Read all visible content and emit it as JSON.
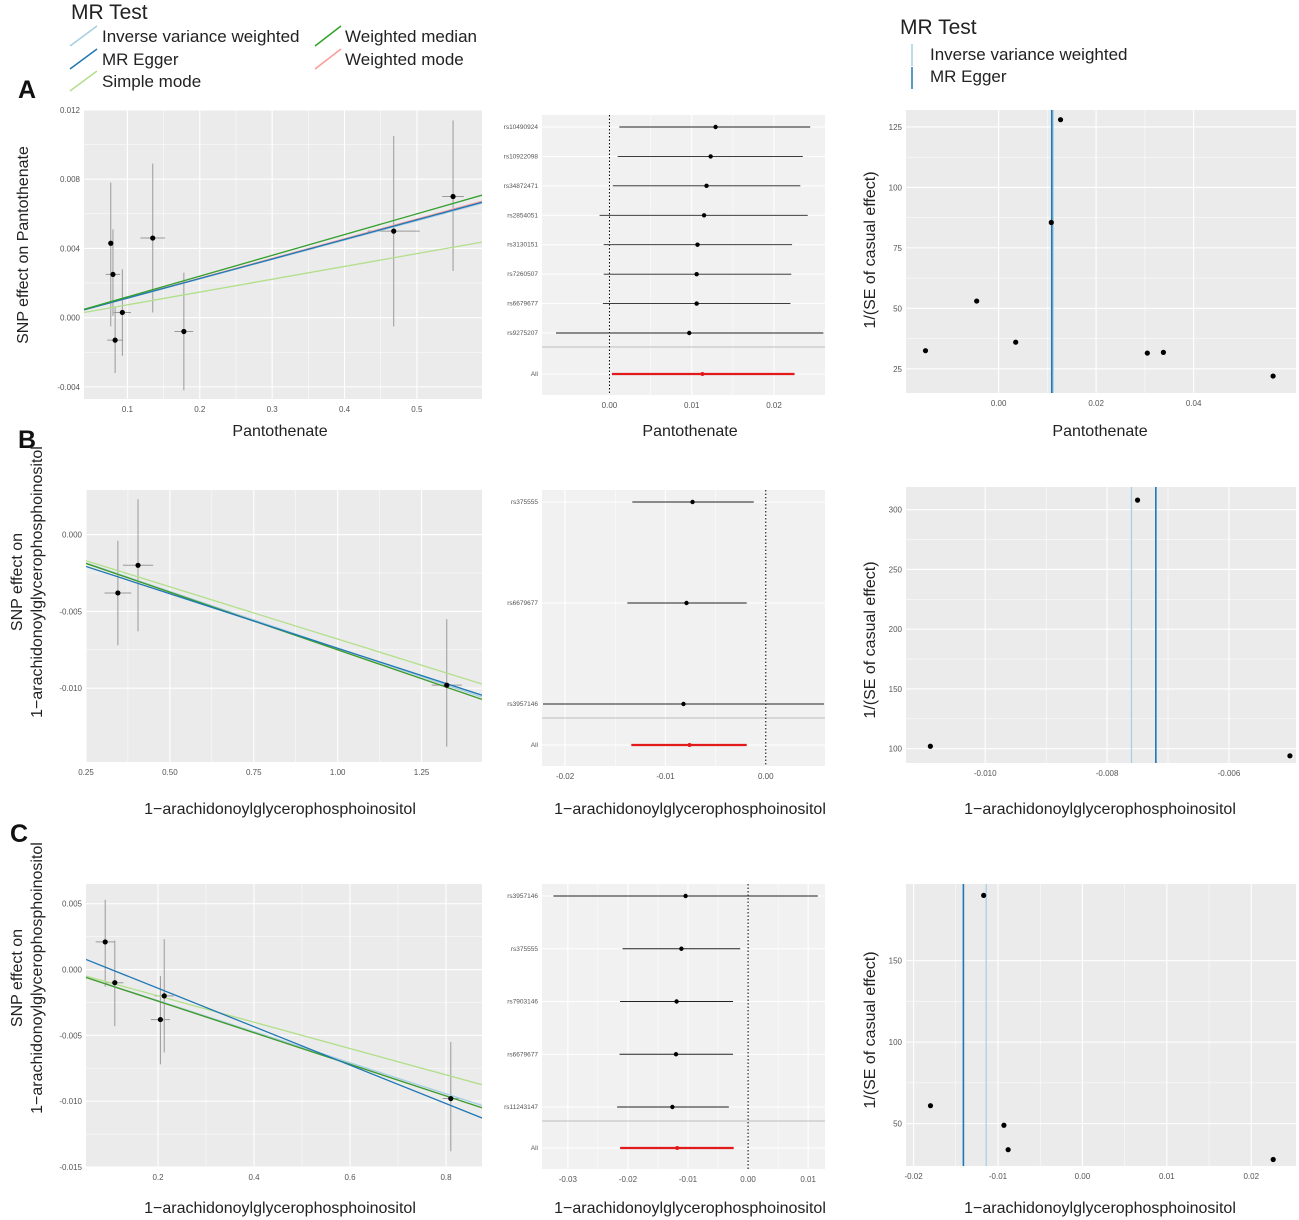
{
  "colors": {
    "ivw": "#a6cee3",
    "egger": "#1f78b4",
    "simple_mode": "#b2df8a",
    "weighted_median": "#33a02c",
    "weighted_mode": "#fb9a99",
    "panel_bg": "#ebebeb",
    "forest_bg": "#f1f1f1",
    "point": "#000000",
    "overall": "#e31a1c"
  },
  "legend_left": {
    "title": "MR Test",
    "items": [
      {
        "label": "Inverse variance weighted",
        "color": "#a6cee3"
      },
      {
        "label": "Weighted median",
        "color": "#33a02c"
      },
      {
        "label": "MR Egger",
        "color": "#1f78b4"
      },
      {
        "label": "Weighted mode",
        "color": "#fb9a99"
      },
      {
        "label": "Simple mode",
        "color": "#b2df8a"
      }
    ]
  },
  "legend_right": {
    "title": "MR Test",
    "items": [
      {
        "label": "Inverse variance weighted",
        "color": "#a6cee3"
      },
      {
        "label": "MR Egger",
        "color": "#1f78b4"
      }
    ]
  },
  "panel_letters": [
    "A",
    "B",
    "C"
  ],
  "chart_data": [
    {
      "id": "A-scatter",
      "type": "scatter",
      "xlabel": "Pantothenate",
      "ylabel_lines": [
        "SNP effect on Pantothenate"
      ],
      "xlim": [
        0.04,
        0.59
      ],
      "ylim": [
        -0.0047,
        0.012
      ],
      "xticks": [
        0.1,
        0.2,
        0.3,
        0.4,
        0.5
      ],
      "xtick_labels": [
        "0.1",
        "0.2",
        "0.3",
        "0.4",
        "0.5"
      ],
      "yticks": [
        -0.004,
        0.0,
        0.004,
        0.008,
        0.012
      ],
      "ytick_labels": [
        "-0.004",
        "0.000",
        "0.004",
        "0.008",
        "0.012"
      ],
      "points": [
        {
          "x": 0.077,
          "y": 0.0043,
          "xse": 0.004,
          "ylo": -0.0005,
          "yhi": 0.0078
        },
        {
          "x": 0.08,
          "y": 0.0025,
          "xse": 0.01,
          "ylo": 0.0001,
          "yhi": 0.0051
        },
        {
          "x": 0.083,
          "y": -0.0013,
          "xse": 0.011,
          "ylo": -0.0032,
          "yhi": 0.0006
        },
        {
          "x": 0.093,
          "y": 0.0003,
          "xse": 0.012,
          "ylo": -0.0022,
          "yhi": 0.0028
        },
        {
          "x": 0.135,
          "y": 0.0046,
          "xse": 0.017,
          "ylo": 0.0003,
          "yhi": 0.0089
        },
        {
          "x": 0.178,
          "y": -0.0008,
          "xse": 0.013,
          "ylo": -0.0042,
          "yhi": 0.0026
        },
        {
          "x": 0.468,
          "y": 0.005,
          "xse": 0.036,
          "ylo": -0.0005,
          "yhi": 0.0105
        },
        {
          "x": 0.55,
          "y": 0.007,
          "xse": 0.015,
          "ylo": 0.0027,
          "yhi": 0.0114
        }
      ],
      "lines": [
        {
          "method": "Simple mode",
          "intercept": 0.0,
          "slope": 0.0074
        },
        {
          "method": "Inverse variance weighted",
          "intercept": 0.0,
          "slope": 0.0112
        },
        {
          "method": "Weighted mode",
          "intercept": 0.0,
          "slope": 0.0114
        },
        {
          "method": "MR Egger",
          "intercept": 0.0,
          "slope": 0.0113
        },
        {
          "method": "Weighted median",
          "intercept": 0.0,
          "slope": 0.012
        }
      ]
    },
    {
      "id": "A-forest",
      "type": "forest",
      "xlabel": "Pantothenate",
      "xlim": [
        -0.0082,
        0.0262
      ],
      "xticks": [
        0.0,
        0.01,
        0.02
      ],
      "xtick_labels": [
        "0.00",
        "0.01",
        "0.02"
      ],
      "refline": 0.0,
      "overall_label": "All",
      "snps": [
        {
          "label": "rs10490924",
          "est": 0.0129,
          "lo": 0.0012,
          "hi": 0.0244
        },
        {
          "label": "rs10922098",
          "est": 0.0123,
          "lo": 0.001,
          "hi": 0.0235
        },
        {
          "label": "rs34872471",
          "est": 0.0118,
          "lo": 0.0004,
          "hi": 0.0232
        },
        {
          "label": "rs2854051",
          "est": 0.0115,
          "lo": -0.0012,
          "hi": 0.0241
        },
        {
          "label": "rs3130151",
          "est": 0.0107,
          "lo": -0.0007,
          "hi": 0.0222
        },
        {
          "label": "rs7260507",
          "est": 0.0106,
          "lo": -0.0007,
          "hi": 0.0221
        },
        {
          "label": "rs6679677",
          "est": 0.0106,
          "lo": -0.0008,
          "hi": 0.022
        },
        {
          "label": "rs9275207",
          "est": 0.0097,
          "lo": -0.0065,
          "hi": 0.026
        }
      ],
      "overall": {
        "est": 0.0113,
        "lo": 0.0003,
        "hi": 0.0225
      }
    },
    {
      "id": "A-funnel",
      "type": "funnel",
      "xlabel": "Pantothenate",
      "ylabel": "1/(SE of casual effect)",
      "xlim": [
        -0.019,
        0.061
      ],
      "ylim": [
        15,
        132
      ],
      "xticks": [
        0.0,
        0.02,
        0.04
      ],
      "xtick_labels": [
        "0.00",
        "0.02",
        "0.04"
      ],
      "yticks": [
        25,
        50,
        75,
        100,
        125
      ],
      "ytick_labels": [
        "25",
        "50",
        "75",
        "100",
        "125"
      ],
      "points": [
        {
          "x": -0.015,
          "y": 32.5
        },
        {
          "x": -0.0045,
          "y": 53
        },
        {
          "x": 0.0035,
          "y": 36
        },
        {
          "x": 0.0108,
          "y": 85.5
        },
        {
          "x": 0.0127,
          "y": 128
        },
        {
          "x": 0.0305,
          "y": 31.5
        },
        {
          "x": 0.0338,
          "y": 31.8
        },
        {
          "x": 0.0563,
          "y": 22
        }
      ],
      "vlines": [
        {
          "method": "Inverse variance weighted",
          "x": 0.0112
        },
        {
          "method": "MR Egger",
          "x": 0.0109
        }
      ]
    },
    {
      "id": "B-scatter",
      "type": "scatter",
      "xlabel": "1−arachidonoylglycerophosphoinositol",
      "ylabel_lines": [
        "SNP effect on",
        "1−arachidonoylglycerophosphoinositol"
      ],
      "xlim": [
        0.25,
        1.43
      ],
      "ylim": [
        -0.0148,
        0.0029
      ],
      "xticks": [
        0.25,
        0.5,
        0.75,
        1.0,
        1.25
      ],
      "xtick_labels": [
        "0.25",
        "0.50",
        "0.75",
        "1.00",
        "1.25"
      ],
      "yticks": [
        -0.01,
        -0.005,
        0.0
      ],
      "ytick_labels": [
        "-0.010",
        "-0.005",
        "0.000"
      ],
      "points": [
        {
          "x": 0.345,
          "y": -0.0038,
          "xse": 0.04,
          "ylo": -0.0072,
          "yhi": -0.0004
        },
        {
          "x": 0.405,
          "y": -0.002,
          "xse": 0.045,
          "ylo": -0.0063,
          "yhi": 0.0023
        },
        {
          "x": 1.325,
          "y": -0.0098,
          "xse": 0.045,
          "ylo": -0.0138,
          "yhi": -0.0055
        }
      ],
      "lines": [
        {
          "method": "Simple mode",
          "intercept": 0.0,
          "slope": -0.0068
        },
        {
          "method": "Inverse variance weighted",
          "intercept": 0.0,
          "slope": -0.0074
        },
        {
          "method": "Weighted mode",
          "intercept": 0.0,
          "slope": -0.0075
        },
        {
          "method": "Weighted median",
          "intercept": 0.0,
          "slope": -0.0075
        },
        {
          "method": "MR Egger",
          "intercept": -0.0003,
          "slope": -0.0071
        }
      ]
    },
    {
      "id": "B-forest",
      "type": "forest",
      "xlabel": "1−arachidonoylglycerophosphoinositol",
      "xlim": [
        -0.0223,
        0.0059
      ],
      "xticks": [
        -0.02,
        -0.01,
        0.0
      ],
      "xtick_labels": [
        "-0.02",
        "-0.01",
        "0.00"
      ],
      "refline": 0.0,
      "overall_label": "All",
      "snps": [
        {
          "label": "rs375555",
          "est": -0.0073,
          "lo": -0.0133,
          "hi": -0.0012
        },
        {
          "label": "rs6679677",
          "est": -0.0079,
          "lo": -0.0138,
          "hi": -0.0019
        },
        {
          "label": "rs3957146",
          "est": -0.0082,
          "lo": -0.0222,
          "hi": 0.0058
        }
      ],
      "overall": {
        "est": -0.0076,
        "lo": -0.0134,
        "hi": -0.0019
      }
    },
    {
      "id": "B-funnel",
      "type": "funnel",
      "xlabel": "1−arachidonoylglycerophosphoinositol",
      "ylabel": "1/(SE of casual effect)",
      "xlim": [
        -0.0113,
        -0.0049
      ],
      "ylim": [
        88,
        319
      ],
      "xticks": [
        -0.01,
        -0.008,
        -0.006
      ],
      "xtick_labels": [
        "-0.010",
        "-0.008",
        "-0.006"
      ],
      "yticks": [
        100,
        150,
        200,
        250,
        300
      ],
      "ytick_labels": [
        "100",
        "150",
        "200",
        "250",
        "300"
      ],
      "points": [
        {
          "x": -0.0109,
          "y": 102
        },
        {
          "x": -0.0075,
          "y": 308
        },
        {
          "x": -0.005,
          "y": 94
        }
      ],
      "vlines": [
        {
          "method": "Inverse variance weighted",
          "x": -0.0076
        },
        {
          "method": "MR Egger",
          "x": -0.0072
        }
      ]
    },
    {
      "id": "C-scatter",
      "type": "scatter",
      "xlabel": "1−arachidonoylglycerophosphoinositol",
      "ylabel_lines": [
        "SNP effect on",
        "1−arachidonoylglycerophosphoinositol"
      ],
      "xlim": [
        0.05,
        0.875
      ],
      "ylim": [
        -0.015,
        0.0065
      ],
      "xticks": [
        0.2,
        0.4,
        0.6,
        0.8
      ],
      "xtick_labels": [
        "0.2",
        "0.4",
        "0.6",
        "0.8"
      ],
      "yticks": [
        -0.015,
        -0.01,
        -0.005,
        0.0,
        0.005
      ],
      "ytick_labels": [
        "-0.015",
        "-0.010",
        "-0.005",
        "0.000",
        "0.005"
      ],
      "points": [
        {
          "x": 0.09,
          "y": 0.0021,
          "xse": 0.02,
          "ylo": -0.0013,
          "yhi": 0.0053
        },
        {
          "x": 0.11,
          "y": -0.001,
          "xse": 0.018,
          "ylo": -0.0043,
          "yhi": 0.0022
        },
        {
          "x": 0.205,
          "y": -0.0038,
          "xse": 0.02,
          "ylo": -0.0072,
          "yhi": -0.0005
        },
        {
          "x": 0.213,
          "y": -0.002,
          "xse": 0.02,
          "ylo": -0.0063,
          "yhi": 0.0023
        },
        {
          "x": 0.81,
          "y": -0.0098,
          "xse": 0.017,
          "ylo": -0.0138,
          "yhi": -0.0055
        }
      ],
      "lines": [
        {
          "method": "Simple mode",
          "intercept": 0.0,
          "slope": -0.01
        },
        {
          "method": "Inverse variance weighted",
          "intercept": 0.0,
          "slope": -0.0118
        },
        {
          "method": "Weighted mode",
          "intercept": 0.0,
          "slope": -0.012
        },
        {
          "method": "Weighted median",
          "intercept": 0.0,
          "slope": -0.012
        },
        {
          "method": "MR Egger",
          "intercept": 0.0015,
          "slope": -0.0146
        }
      ]
    },
    {
      "id": "C-forest",
      "type": "forest",
      "xlabel": "1−arachidonoylglycerophosphoinositol",
      "xlim": [
        -0.0343,
        0.0128
      ],
      "xticks": [
        -0.03,
        -0.02,
        -0.01,
        0.0,
        0.01
      ],
      "xtick_labels": [
        "-0.03",
        "-0.02",
        "-0.01",
        "0.00",
        "0.01"
      ],
      "refline": 0.0,
      "overall_label": "All",
      "snps": [
        {
          "label": "rs3957146",
          "est": -0.0104,
          "lo": -0.0324,
          "hi": 0.0116
        },
        {
          "label": "rs375555",
          "est": -0.0111,
          "lo": -0.0209,
          "hi": -0.0013
        },
        {
          "label": "rs7903146",
          "est": -0.0119,
          "lo": -0.0213,
          "hi": -0.0025
        },
        {
          "label": "rs6679677",
          "est": -0.012,
          "lo": -0.0214,
          "hi": -0.0025
        },
        {
          "label": "rs11243147",
          "est": -0.0126,
          "lo": -0.0218,
          "hi": -0.0032
        }
      ],
      "overall": {
        "est": -0.0118,
        "lo": -0.0213,
        "hi": -0.0024
      }
    },
    {
      "id": "C-funnel",
      "type": "funnel",
      "xlabel": "1−arachidonoylglycerophosphoinositol",
      "ylabel": "1/(SE of casual effect)",
      "xlim": [
        -0.0209,
        0.0253
      ],
      "ylim": [
        24,
        197
      ],
      "xticks": [
        -0.02,
        -0.01,
        0.0,
        0.01,
        0.02
      ],
      "xtick_labels": [
        "-0.02",
        "-0.01",
        "0.00",
        "0.01",
        "0.02"
      ],
      "yticks": [
        50,
        100,
        150
      ],
      "ytick_labels": [
        "50",
        "100",
        "150"
      ],
      "points": [
        {
          "x": -0.018,
          "y": 61
        },
        {
          "x": -0.0117,
          "y": 190
        },
        {
          "x": -0.0093,
          "y": 49
        },
        {
          "x": -0.0088,
          "y": 34
        },
        {
          "x": 0.0226,
          "y": 28
        }
      ],
      "vlines": [
        {
          "method": "Inverse variance weighted",
          "x": -0.0114
        },
        {
          "method": "MR Egger",
          "x": -0.0141
        }
      ]
    }
  ]
}
